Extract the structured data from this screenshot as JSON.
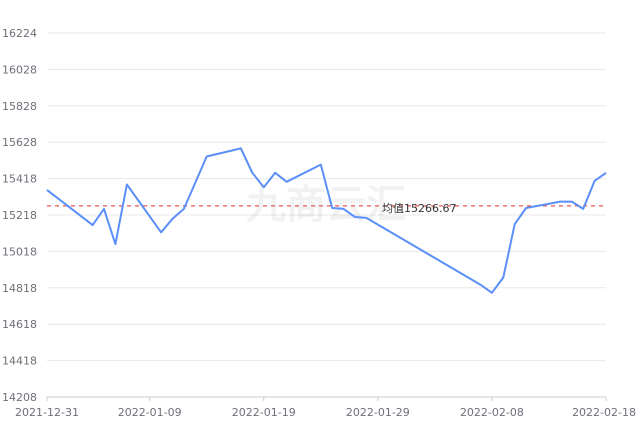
{
  "chart_data": {
    "type": "line",
    "x_ticks": [
      "2021-12-31",
      "2022-01-09",
      "2022-01-19",
      "2022-01-29",
      "2022-02-08",
      "2022-02-18"
    ],
    "y_ticks": [
      16224,
      16028,
      15828,
      15628,
      15418,
      15218,
      15018,
      14818,
      14618,
      14418,
      14208
    ],
    "ylim": [
      14208,
      16224
    ],
    "xlim": [
      "2021-12-31",
      "2022-02-18"
    ],
    "grid": true,
    "series": [
      {
        "color": "#5b8ff9",
        "points": [
          {
            "x": "2021-12-31",
            "y": 15355
          },
          {
            "x": "2022-01-04",
            "y": 15160
          },
          {
            "x": "2022-01-05",
            "y": 15250
          },
          {
            "x": "2022-01-06",
            "y": 15055
          },
          {
            "x": "2022-01-07",
            "y": 15385
          },
          {
            "x": "2022-01-10",
            "y": 15120
          },
          {
            "x": "2022-01-11",
            "y": 15195
          },
          {
            "x": "2022-01-12",
            "y": 15250
          },
          {
            "x": "2022-01-14",
            "y": 15540
          },
          {
            "x": "2022-01-17",
            "y": 15585
          },
          {
            "x": "2022-01-18",
            "y": 15450
          },
          {
            "x": "2022-01-19",
            "y": 15370
          },
          {
            "x": "2022-01-20",
            "y": 15450
          },
          {
            "x": "2022-01-21",
            "y": 15400
          },
          {
            "x": "2022-01-24",
            "y": 15495
          },
          {
            "x": "2022-01-25",
            "y": 15255
          },
          {
            "x": "2022-01-26",
            "y": 15250
          },
          {
            "x": "2022-01-27",
            "y": 15205
          },
          {
            "x": "2022-01-28",
            "y": 15200
          },
          {
            "x": "2022-02-07",
            "y": 14830
          },
          {
            "x": "2022-02-08",
            "y": 14785
          },
          {
            "x": "2022-02-09",
            "y": 14870
          },
          {
            "x": "2022-02-10",
            "y": 15165
          },
          {
            "x": "2022-02-11",
            "y": 15255
          },
          {
            "x": "2022-02-14",
            "y": 15290
          },
          {
            "x": "2022-02-15",
            "y": 15290
          },
          {
            "x": "2022-02-16",
            "y": 15250
          },
          {
            "x": "2022-02-17",
            "y": 15405
          },
          {
            "x": "2022-02-18",
            "y": 15450
          }
        ]
      }
    ],
    "average": {
      "value": 15266.67,
      "label": "均值15266.67",
      "color": "#e8574f"
    },
    "watermark": "九商云汇"
  }
}
